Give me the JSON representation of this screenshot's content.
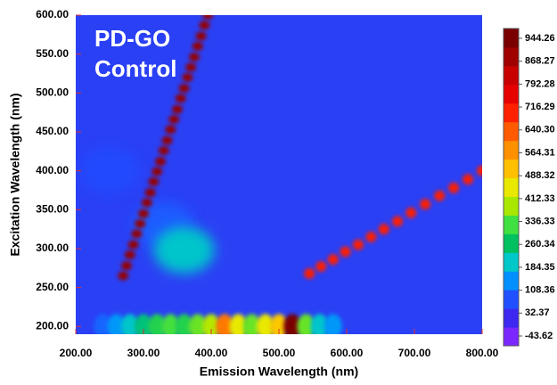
{
  "chart_data": {
    "type": "contour",
    "annotation": [
      "PD-GO",
      "Control"
    ],
    "x_label": "Emission Wavelength (nm)",
    "y_label": "Excitation Wavelength (nm)",
    "xlim": [
      200,
      800
    ],
    "ylim": [
      190,
      600
    ],
    "xticks": [
      {
        "value": 200,
        "label": "200.00"
      },
      {
        "value": 300,
        "label": "300.00"
      },
      {
        "value": 400,
        "label": "400.00"
      },
      {
        "value": 500,
        "label": "500.00"
      },
      {
        "value": 600,
        "label": "600.00"
      },
      {
        "value": 700,
        "label": "700.00"
      },
      {
        "value": 800,
        "label": "800.00"
      }
    ],
    "yticks": [
      {
        "value": 200,
        "label": "200.00"
      },
      {
        "value": 250,
        "label": "250.00"
      },
      {
        "value": 300,
        "label": "300.00"
      },
      {
        "value": 350,
        "label": "350.00"
      },
      {
        "value": 400,
        "label": "400.00"
      },
      {
        "value": 450,
        "label": "450.00"
      },
      {
        "value": 500,
        "label": "500.00"
      },
      {
        "value": 550,
        "label": "550.00"
      },
      {
        "value": 600,
        "label": "600.00"
      }
    ],
    "colorbar": {
      "ticks": [
        944.26,
        868.27,
        792.28,
        716.29,
        {
          "value": 640.3,
          "label": "640.30"
        },
        564.31,
        488.32,
        412.33,
        336.33,
        260.34,
        184.35,
        108.36,
        32.37,
        -43.62
      ],
      "colors": [
        "#7a28ff",
        "#3c28f0",
        "#2050ff",
        "#0090ff",
        "#00c8c8",
        "#00c060",
        "#40e040",
        "#a8e800",
        "#e8e800",
        "#ffc000",
        "#ff9000",
        "#ff5a00",
        "#ff2000",
        "#e60000",
        "#c80000",
        "#a00000",
        "#7a0000"
      ]
    },
    "features": [
      {
        "x": [
          330,
          360,
          250
        ],
        "y": [
          330,
          298,
          400
        ],
        "values": [
          90,
          200,
          70
        ]
      },
      {
        "x": [
          240,
          260,
          280,
          300,
          320,
          340,
          360,
          380,
          400,
          420,
          440,
          460,
          480,
          500,
          520,
          540,
          560,
          580
        ],
        "y": [
          200,
          200,
          200,
          200,
          200,
          200,
          200,
          200,
          200,
          200,
          200,
          200,
          200,
          200,
          200,
          200,
          200,
          200
        ],
        "values": [
          100,
          150,
          200,
          250,
          300,
          330,
          300,
          350,
          400,
          600,
          450,
          350,
          450,
          500,
          944,
          350,
          200,
          150
        ]
      },
      {
        "x": [
          270,
          275,
          280,
          285,
          290,
          295,
          300,
          305,
          310,
          315,
          320,
          325,
          330,
          335,
          340,
          345,
          350,
          355,
          360,
          365,
          370,
          375,
          380,
          385,
          390,
          395
        ],
        "y": [
          265,
          278,
          292,
          305,
          319,
          332,
          345,
          359,
          372,
          386,
          399,
          412,
          426,
          439,
          453,
          466,
          479,
          493,
          506,
          520,
          533,
          546,
          560,
          573,
          587,
          600
        ],
        "values": [
          900,
          900,
          900,
          900,
          900,
          900,
          900,
          900,
          900,
          900,
          900,
          900,
          900,
          900,
          900,
          900,
          900,
          900,
          900,
          900,
          900,
          900,
          900,
          900,
          900,
          900
        ]
      },
      {
        "x": [
          545,
          562,
          580,
          598,
          617,
          636,
          655,
          675,
          695,
          716,
          737,
          758,
          779,
          800
        ],
        "y": [
          268,
          277,
          286,
          296,
          305,
          315,
          325,
          335,
          346,
          357,
          368,
          378,
          389,
          400
        ],
        "values": [
          700,
          700,
          700,
          700,
          700,
          700,
          700,
          700,
          700,
          700,
          700,
          700,
          700,
          700
        ]
      }
    ]
  }
}
